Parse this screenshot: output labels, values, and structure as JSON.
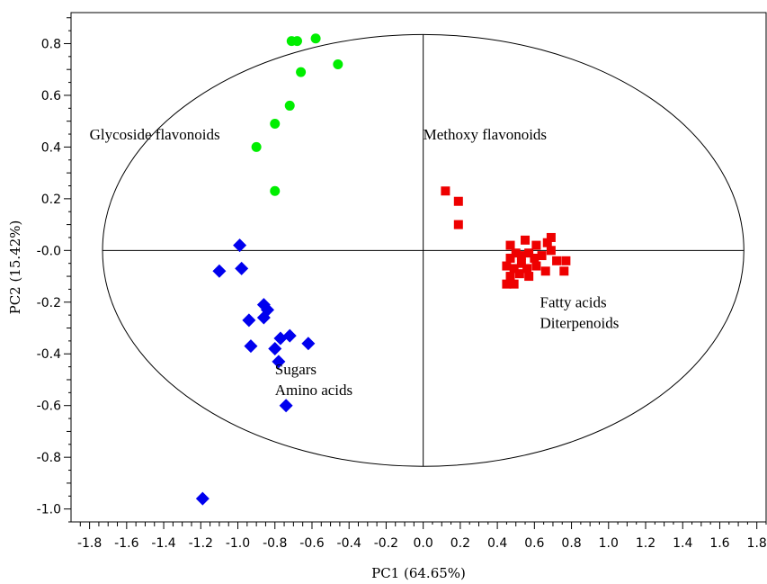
{
  "chart_data": {
    "type": "scatter",
    "xlabel": "PC1 (64.65%)",
    "ylabel": "PC2 (15.42%)",
    "xlim": [
      -1.9,
      1.85
    ],
    "ylim": [
      -1.05,
      0.92
    ],
    "x_ticks": [
      "-1.8",
      "-1.6",
      "-1.4",
      "-1.2",
      "-1.0",
      "-0.8",
      "-0.6",
      "-0.4",
      "-0.2",
      "0.0",
      "0.2",
      "0.4",
      "0.6",
      "0.8",
      "1.0",
      "1.2",
      "1.4",
      "1.6",
      "1.8"
    ],
    "y_ticks": [
      "0.8",
      "0.6",
      "0.4",
      "0.2",
      "-0.0",
      "-0.2",
      "-0.4",
      "-0.6",
      "-0.8",
      "-1.0"
    ],
    "ellipse": {
      "center": [
        0,
        0
      ],
      "rx": 1.73,
      "ry": 0.835
    },
    "grid": false,
    "series": [
      {
        "color": "#00ee00",
        "marker": "circle",
        "points": [
          [
            -0.71,
            0.81
          ],
          [
            -0.68,
            0.81
          ],
          [
            -0.58,
            0.82
          ],
          [
            -0.46,
            0.72
          ],
          [
            -0.66,
            0.69
          ],
          [
            -0.72,
            0.56
          ],
          [
            -0.8,
            0.49
          ],
          [
            -0.9,
            0.4
          ],
          [
            -0.8,
            0.23
          ]
        ]
      },
      {
        "color": "#ee0000",
        "marker": "square",
        "points": [
          [
            0.12,
            0.23
          ],
          [
            0.19,
            0.19
          ],
          [
            0.19,
            0.1
          ],
          [
            0.47,
            0.02
          ],
          [
            0.55,
            0.04
          ],
          [
            0.61,
            0.02
          ],
          [
            0.67,
            0.03
          ],
          [
            0.69,
            0.05
          ],
          [
            0.47,
            -0.03
          ],
          [
            0.5,
            -0.01
          ],
          [
            0.53,
            -0.02
          ],
          [
            0.57,
            -0.01
          ],
          [
            0.6,
            -0.03
          ],
          [
            0.64,
            -0.02
          ],
          [
            0.69,
            0.0
          ],
          [
            0.72,
            -0.04
          ],
          [
            0.77,
            -0.04
          ],
          [
            0.45,
            -0.06
          ],
          [
            0.49,
            -0.07
          ],
          [
            0.53,
            -0.05
          ],
          [
            0.56,
            -0.07
          ],
          [
            0.61,
            -0.06
          ],
          [
            0.66,
            -0.08
          ],
          [
            0.76,
            -0.08
          ],
          [
            0.47,
            -0.1
          ],
          [
            0.52,
            -0.09
          ],
          [
            0.57,
            -0.1
          ],
          [
            0.45,
            -0.13
          ],
          [
            0.49,
            -0.13
          ]
        ]
      },
      {
        "color": "#0000ee",
        "marker": "diamond",
        "points": [
          [
            -0.99,
            0.02
          ],
          [
            -1.1,
            -0.08
          ],
          [
            -0.98,
            -0.07
          ],
          [
            -0.86,
            -0.21
          ],
          [
            -0.84,
            -0.23
          ],
          [
            -0.86,
            -0.26
          ],
          [
            -0.94,
            -0.27
          ],
          [
            -0.77,
            -0.34
          ],
          [
            -0.72,
            -0.33
          ],
          [
            -0.62,
            -0.36
          ],
          [
            -0.93,
            -0.37
          ],
          [
            -0.8,
            -0.38
          ],
          [
            -0.78,
            -0.43
          ],
          [
            -0.74,
            -0.6
          ],
          [
            -1.19,
            -0.96
          ]
        ]
      }
    ],
    "annotations": [
      {
        "text": "Glycoside flavonoids",
        "x": -1.8,
        "y": 0.43
      },
      {
        "text": "Methoxy flavonoids",
        "x": 0.0,
        "y": 0.43
      },
      {
        "text": "Fatty acids",
        "x": 0.63,
        "y": -0.22
      },
      {
        "text": "Diterpenoids",
        "x": 0.63,
        "y": -0.3
      },
      {
        "text": "Sugars",
        "x": -0.8,
        "y": -0.48
      },
      {
        "text": "Amino acids",
        "x": -0.8,
        "y": -0.56
      }
    ]
  }
}
